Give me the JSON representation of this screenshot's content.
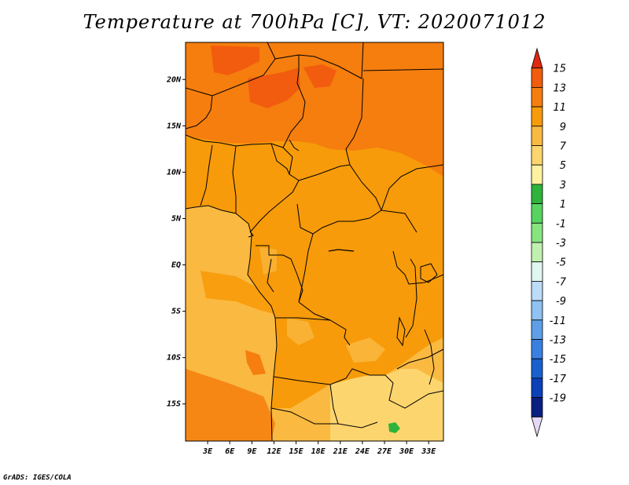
{
  "title": "Temperature at 700hPa [C], VT: 2020071012",
  "credit": "GrADS: IGES/COLA",
  "map": {
    "lat_range": [
      -19,
      24
    ],
    "lon_range": [
      0,
      35
    ],
    "lat_ticks": [
      {
        "value": 20,
        "label": "20N"
      },
      {
        "value": 15,
        "label": "15N"
      },
      {
        "value": 10,
        "label": "10N"
      },
      {
        "value": 5,
        "label": "5N"
      },
      {
        "value": 0,
        "label": "EQ"
      },
      {
        "value": -5,
        "label": "5S"
      },
      {
        "value": -10,
        "label": "10S"
      },
      {
        "value": -15,
        "label": "15S"
      }
    ],
    "lon_ticks": [
      {
        "value": 3,
        "label": "3E"
      },
      {
        "value": 6,
        "label": "6E"
      },
      {
        "value": 9,
        "label": "9E"
      },
      {
        "value": 12,
        "label": "12E"
      },
      {
        "value": 15,
        "label": "15E"
      },
      {
        "value": 18,
        "label": "18E"
      },
      {
        "value": 21,
        "label": "21E"
      },
      {
        "value": 24,
        "label": "24E"
      },
      {
        "value": 27,
        "label": "27E"
      },
      {
        "value": 30,
        "label": "30E"
      },
      {
        "value": 33,
        "label": "33E"
      }
    ]
  },
  "colorbar": {
    "labels": [
      "15",
      "13",
      "11",
      "9",
      "7",
      "5",
      "3",
      "1",
      "-1",
      "-3",
      "-5",
      "-7",
      "-9",
      "-11",
      "-13",
      "-15",
      "-17",
      "-19"
    ],
    "colors": [
      "#e0280e",
      "#f25c0e",
      "#f57e0e",
      "#f79b0a",
      "#fab941",
      "#fdd56e",
      "#fef1a0",
      "#2fb33a",
      "#57d45f",
      "#88e47f",
      "#c0f0b0",
      "#e0f6f0",
      "#bcdcfa",
      "#8fc1f2",
      "#5f9fe8",
      "#3a80e0",
      "#1a5fcf",
      "#0b40b8",
      "#0a1f80",
      "#e5d8f4"
    ]
  },
  "colors": {
    "background": "#ffffff",
    "ocean": "#fab941",
    "land_main": "#f79b0a",
    "land_north": "#f57e0e",
    "land_hot": "#f25c0e",
    "land_south": "#fdd56e",
    "green_spot": "#2fb33a"
  }
}
